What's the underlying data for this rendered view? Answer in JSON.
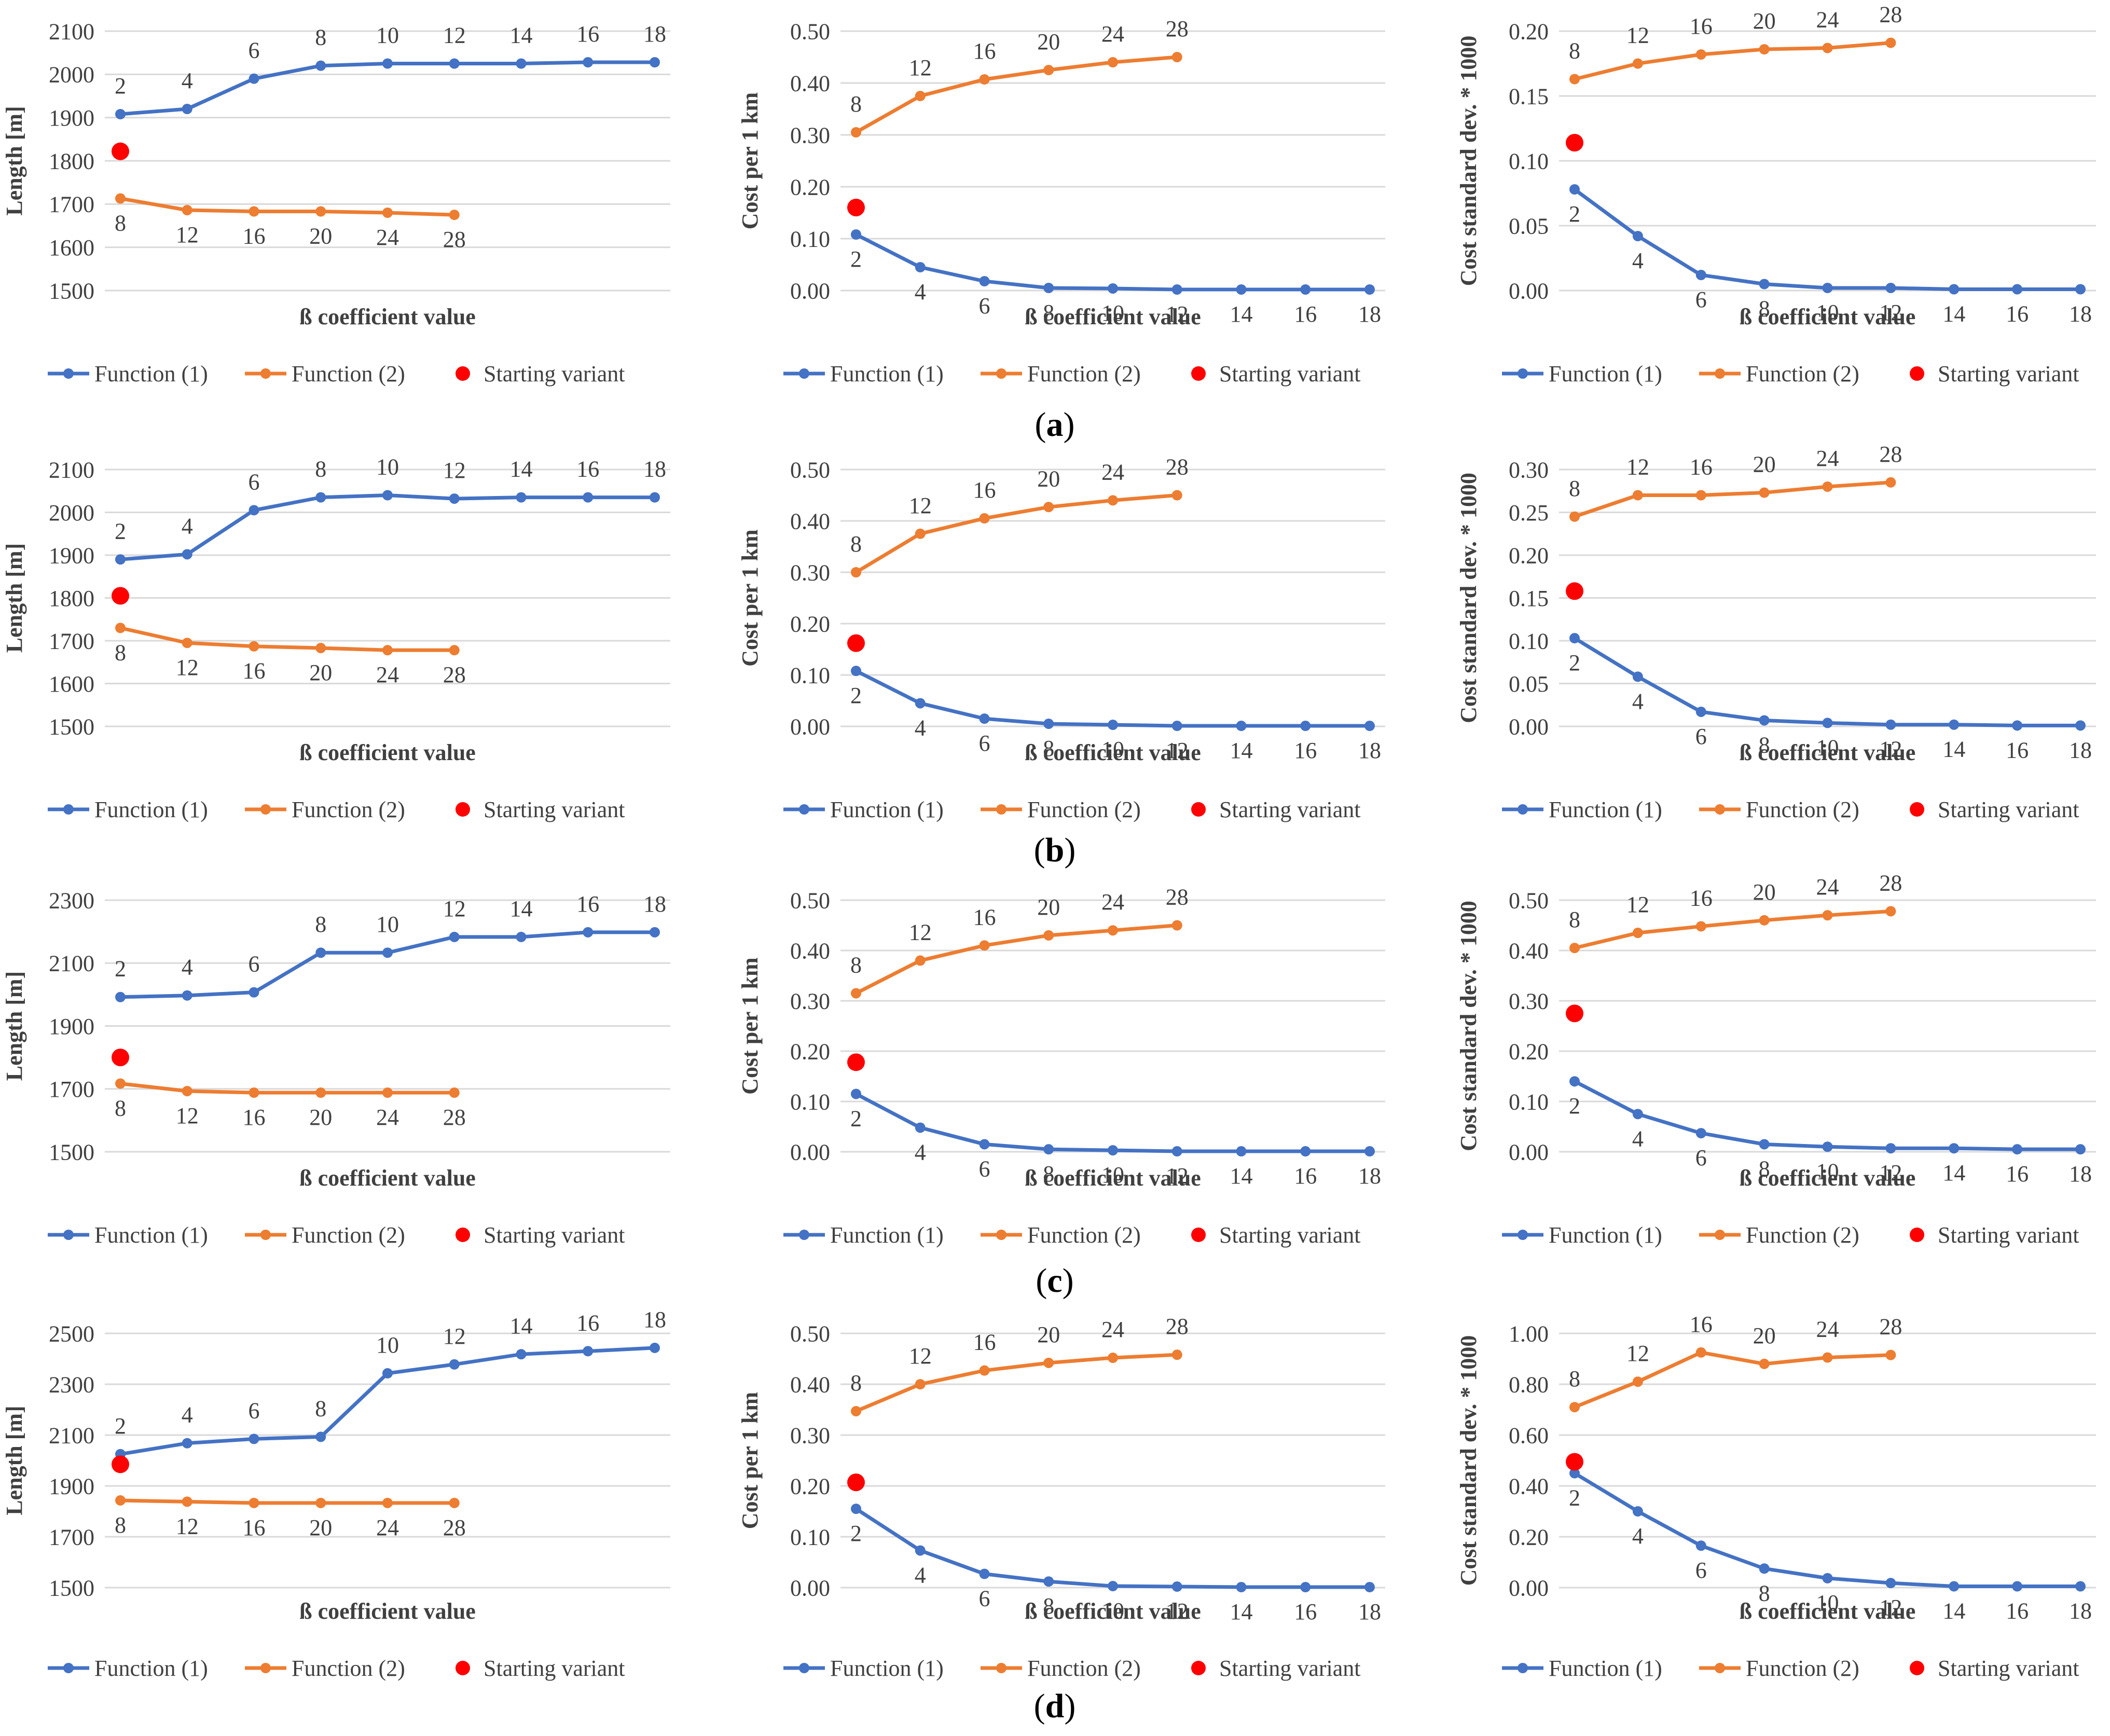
{
  "colors": {
    "f1": "#4472C4",
    "f2": "#ED7D31",
    "start": "#FF0000",
    "grid": "#D9D9D9",
    "text": "#404040"
  },
  "legend": {
    "f1": "Function (1)",
    "f2": "Function (2)",
    "start": "Starting variant"
  },
  "row_labels": [
    "a",
    "b",
    "c",
    "d"
  ],
  "chart_data": [
    {
      "type": "line",
      "row": "a",
      "title": "",
      "xlabel": "ß coefficient value",
      "ylabel": "Length [m]",
      "ylim": [
        1500,
        2100
      ],
      "yticks": [
        "1500",
        "1600",
        "1700",
        "1800",
        "1900",
        "2000",
        "2100"
      ],
      "series": [
        {
          "name": "Function (1)",
          "labels": [
            "2",
            "4",
            "6",
            "8",
            "10",
            "12",
            "14",
            "16",
            "18"
          ],
          "values": [
            1908,
            1920,
            1990,
            2020,
            2025,
            2025,
            2025,
            2028,
            2028
          ]
        },
        {
          "name": "Function (2)",
          "labels": [
            "8",
            "12",
            "16",
            "20",
            "24",
            "28"
          ],
          "values": [
            1713,
            1686,
            1683,
            1683,
            1680,
            1675
          ]
        },
        {
          "name": "Starting variant",
          "values": [
            1822
          ]
        }
      ]
    },
    {
      "type": "line",
      "row": "a",
      "title": "",
      "xlabel": "ß coefficient value",
      "ylabel": "Cost per 1 km",
      "ylim": [
        0,
        0.5
      ],
      "yticks": [
        "0.00",
        "0.10",
        "0.20",
        "0.30",
        "0.40",
        "0.50"
      ],
      "series": [
        {
          "name": "Function (1)",
          "labels": [
            "2",
            "4",
            "6",
            "8",
            "10",
            "12",
            "14",
            "16",
            "18"
          ],
          "values": [
            0.108,
            0.045,
            0.018,
            0.005,
            0.004,
            0.002,
            0.002,
            0.002,
            0.002
          ]
        },
        {
          "name": "Function (2)",
          "labels": [
            "8",
            "12",
            "16",
            "20",
            "24",
            "28"
          ],
          "values": [
            0.305,
            0.375,
            0.407,
            0.425,
            0.44,
            0.45
          ]
        },
        {
          "name": "Starting variant",
          "values": [
            0.16
          ]
        }
      ]
    },
    {
      "type": "line",
      "row": "a",
      "title": "",
      "xlabel": "ß coefficient value",
      "ylabel": "Cost standard dev. * 1000",
      "ylim": [
        0,
        0.2
      ],
      "yticks": [
        "0.00",
        "0.05",
        "0.10",
        "0.15",
        "0.20"
      ],
      "series": [
        {
          "name": "Function (1)",
          "labels": [
            "2",
            "4",
            "6",
            "8",
            "10",
            "12",
            "14",
            "16",
            "18"
          ],
          "values": [
            0.078,
            0.042,
            0.012,
            0.005,
            0.002,
            0.002,
            0.001,
            0.001,
            0.001
          ]
        },
        {
          "name": "Function (2)",
          "labels": [
            "8",
            "12",
            "16",
            "20",
            "24",
            "28"
          ],
          "values": [
            0.163,
            0.175,
            0.182,
            0.186,
            0.187,
            0.191
          ]
        },
        {
          "name": "Starting variant",
          "values": [
            0.114
          ]
        }
      ]
    },
    {
      "type": "line",
      "row": "b",
      "title": "",
      "xlabel": "ß coefficient value",
      "ylabel": "Length [m]",
      "ylim": [
        1500,
        2100
      ],
      "yticks": [
        "1500",
        "1600",
        "1700",
        "1800",
        "1900",
        "2000",
        "2100"
      ],
      "series": [
        {
          "name": "Function (1)",
          "labels": [
            "2",
            "4",
            "6",
            "8",
            "10",
            "12",
            "14",
            "16",
            "18"
          ],
          "values": [
            1890,
            1902,
            2005,
            2035,
            2040,
            2032,
            2035,
            2035,
            2035
          ]
        },
        {
          "name": "Function (2)",
          "labels": [
            "8",
            "12",
            "16",
            "20",
            "24",
            "28"
          ],
          "values": [
            1730,
            1695,
            1687,
            1683,
            1678,
            1678
          ]
        },
        {
          "name": "Starting variant",
          "values": [
            1805
          ]
        }
      ]
    },
    {
      "type": "line",
      "row": "b",
      "title": "",
      "xlabel": "ß coefficient value",
      "ylabel": "Cost per 1 km",
      "ylim": [
        0,
        0.5
      ],
      "yticks": [
        "0.00",
        "0.10",
        "0.20",
        "0.30",
        "0.40",
        "0.50"
      ],
      "series": [
        {
          "name": "Function (1)",
          "labels": [
            "2",
            "4",
            "6",
            "8",
            "10",
            "12",
            "14",
            "16",
            "18"
          ],
          "values": [
            0.108,
            0.045,
            0.015,
            0.005,
            0.003,
            0.001,
            0.001,
            0.001,
            0.001
          ]
        },
        {
          "name": "Function (2)",
          "labels": [
            "8",
            "12",
            "16",
            "20",
            "24",
            "28"
          ],
          "values": [
            0.3,
            0.375,
            0.405,
            0.427,
            0.44,
            0.45
          ]
        },
        {
          "name": "Starting variant",
          "values": [
            0.162
          ]
        }
      ]
    },
    {
      "type": "line",
      "row": "b",
      "title": "",
      "xlabel": "ß coefficient value",
      "ylabel": "Cost standard dev. * 1000",
      "ylim": [
        0,
        0.3
      ],
      "yticks": [
        "0.00",
        "0.05",
        "0.10",
        "0.15",
        "0.20",
        "0.25",
        "0.30"
      ],
      "series": [
        {
          "name": "Function (1)",
          "labels": [
            "2",
            "4",
            "6",
            "8",
            "10",
            "12",
            "14",
            "16",
            "18"
          ],
          "values": [
            0.103,
            0.058,
            0.017,
            0.007,
            0.004,
            0.002,
            0.002,
            0.001,
            0.001
          ]
        },
        {
          "name": "Function (2)",
          "labels": [
            "8",
            "12",
            "16",
            "20",
            "24",
            "28"
          ],
          "values": [
            0.245,
            0.27,
            0.27,
            0.273,
            0.28,
            0.285
          ]
        },
        {
          "name": "Starting variant",
          "values": [
            0.158
          ]
        }
      ]
    },
    {
      "type": "line",
      "row": "c",
      "title": "",
      "xlabel": "ß coefficient value",
      "ylabel": "Length [m]",
      "ylim": [
        1500,
        2300
      ],
      "yticks": [
        "1500",
        "1700",
        "1900",
        "2100",
        "2300"
      ],
      "series": [
        {
          "name": "Function (1)",
          "labels": [
            "2",
            "4",
            "6",
            "8",
            "10",
            "12",
            "14",
            "16",
            "18"
          ],
          "values": [
            1992,
            1997,
            2007,
            2133,
            2133,
            2183,
            2183,
            2198,
            2198
          ]
        },
        {
          "name": "Function (2)",
          "labels": [
            "8",
            "12",
            "16",
            "20",
            "24",
            "28"
          ],
          "values": [
            1717,
            1693,
            1688,
            1688,
            1688,
            1688
          ]
        },
        {
          "name": "Starting variant",
          "values": [
            1800
          ]
        }
      ]
    },
    {
      "type": "line",
      "row": "c",
      "title": "",
      "xlabel": "ß coefficient value",
      "ylabel": "Cost per 1 km",
      "ylim": [
        0,
        0.5
      ],
      "yticks": [
        "0.00",
        "0.10",
        "0.20",
        "0.30",
        "0.40",
        "0.50"
      ],
      "series": [
        {
          "name": "Function (1)",
          "labels": [
            "2",
            "4",
            "6",
            "8",
            "10",
            "12",
            "14",
            "16",
            "18"
          ],
          "values": [
            0.115,
            0.048,
            0.015,
            0.005,
            0.003,
            0.001,
            0.001,
            0.001,
            0.001
          ]
        },
        {
          "name": "Function (2)",
          "labels": [
            "8",
            "12",
            "16",
            "20",
            "24",
            "28"
          ],
          "values": [
            0.315,
            0.38,
            0.41,
            0.43,
            0.44,
            0.45
          ]
        },
        {
          "name": "Starting variant",
          "values": [
            0.178
          ]
        }
      ]
    },
    {
      "type": "line",
      "row": "c",
      "title": "",
      "xlabel": "ß coefficient value",
      "ylabel": "Cost standard dev. * 1000",
      "ylim": [
        0,
        0.5
      ],
      "yticks": [
        "0.00",
        "0.10",
        "0.20",
        "0.30",
        "0.40",
        "0.50"
      ],
      "series": [
        {
          "name": "Function (1)",
          "labels": [
            "2",
            "4",
            "6",
            "8",
            "10",
            "12",
            "14",
            "16",
            "18"
          ],
          "values": [
            0.14,
            0.075,
            0.037,
            0.015,
            0.01,
            0.007,
            0.007,
            0.005,
            0.005
          ]
        },
        {
          "name": "Function (2)",
          "labels": [
            "8",
            "12",
            "16",
            "20",
            "24",
            "28"
          ],
          "values": [
            0.405,
            0.435,
            0.448,
            0.46,
            0.47,
            0.478
          ]
        },
        {
          "name": "Starting variant",
          "values": [
            0.275
          ]
        }
      ]
    },
    {
      "type": "line",
      "row": "d",
      "title": "",
      "xlabel": "ß coefficient value",
      "ylabel": "Length [m]",
      "ylim": [
        1500,
        2500
      ],
      "yticks": [
        "1500",
        "1700",
        "1900",
        "2100",
        "2300",
        "2500"
      ],
      "series": [
        {
          "name": "Function (1)",
          "labels": [
            "2",
            "4",
            "6",
            "8",
            "10",
            "12",
            "14",
            "16",
            "18"
          ],
          "values": [
            2025,
            2068,
            2085,
            2093,
            2343,
            2378,
            2418,
            2430,
            2443
          ]
        },
        {
          "name": "Function (2)",
          "labels": [
            "8",
            "12",
            "16",
            "20",
            "24",
            "28"
          ],
          "values": [
            1843,
            1838,
            1833,
            1833,
            1833,
            1833
          ]
        },
        {
          "name": "Starting variant",
          "values": [
            1985
          ]
        }
      ]
    },
    {
      "type": "line",
      "row": "d",
      "title": "",
      "xlabel": "ß coefficient value",
      "ylabel": "Cost per 1 km",
      "ylim": [
        0,
        0.5
      ],
      "yticks": [
        "0.00",
        "0.10",
        "0.20",
        "0.30",
        "0.40",
        "0.50"
      ],
      "series": [
        {
          "name": "Function (1)",
          "labels": [
            "2",
            "4",
            "6",
            "8",
            "10",
            "12",
            "14",
            "16",
            "18"
          ],
          "values": [
            0.155,
            0.073,
            0.027,
            0.012,
            0.003,
            0.002,
            0.001,
            0.001,
            0.001
          ]
        },
        {
          "name": "Function (2)",
          "labels": [
            "8",
            "12",
            "16",
            "20",
            "24",
            "28"
          ],
          "values": [
            0.347,
            0.4,
            0.427,
            0.442,
            0.452,
            0.458
          ]
        },
        {
          "name": "Starting variant",
          "values": [
            0.207
          ]
        }
      ]
    },
    {
      "type": "line",
      "row": "d",
      "title": "",
      "xlabel": "ß coefficient value",
      "ylabel": "Cost standard dev. * 1000",
      "ylim": [
        0,
        1.0
      ],
      "yticks": [
        "0.00",
        "0.20",
        "0.40",
        "0.60",
        "0.80",
        "1.00"
      ],
      "series": [
        {
          "name": "Function (1)",
          "labels": [
            "2",
            "4",
            "6",
            "8",
            "10",
            "12",
            "14",
            "16",
            "18"
          ],
          "values": [
            0.45,
            0.3,
            0.165,
            0.075,
            0.037,
            0.018,
            0.005,
            0.005,
            0.005
          ]
        },
        {
          "name": "Function (2)",
          "labels": [
            "8",
            "12",
            "16",
            "20",
            "24",
            "28"
          ],
          "values": [
            0.71,
            0.81,
            0.925,
            0.88,
            0.905,
            0.915
          ]
        },
        {
          "name": "Starting variant",
          "values": [
            0.495
          ]
        }
      ]
    }
  ]
}
